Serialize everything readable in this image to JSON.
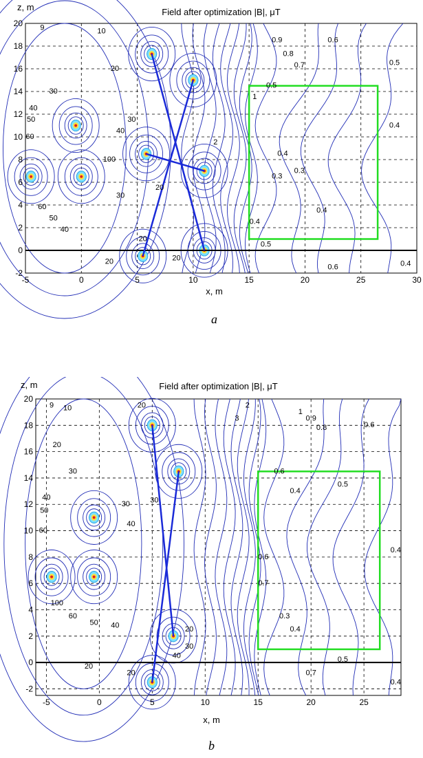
{
  "chart_data": [
    {
      "type": "contour",
      "panel": "a",
      "title": "Field after optimization |B|, μT",
      "xlabel": "x, m",
      "ylabel": "z, m",
      "caption": "a",
      "xlim": [
        -5,
        30
      ],
      "ylim": [
        -2,
        20
      ],
      "xticks": [
        -5,
        0,
        5,
        10,
        15,
        20,
        25,
        30
      ],
      "yticks": [
        -2,
        0,
        2,
        4,
        6,
        8,
        10,
        12,
        14,
        16,
        18,
        20
      ],
      "grid": true,
      "ground_line_z": 0,
      "region_rect": {
        "x0": 15,
        "x1": 26.5,
        "z0": 1,
        "z1": 14.5,
        "color": "#22dd22"
      },
      "conductors": [
        {
          "x": -4.5,
          "z": 6.5
        },
        {
          "x": 0,
          "z": 6.5
        },
        {
          "x": -0.5,
          "z": 11
        },
        {
          "x": 5.5,
          "z": -0.5
        },
        {
          "x": 11,
          "z": 0
        },
        {
          "x": 5.8,
          "z": 8.5
        },
        {
          "x": 11,
          "z": 7
        },
        {
          "x": 6.3,
          "z": 17.3
        },
        {
          "x": 10,
          "z": 15
        }
      ],
      "links": [
        {
          "from": [
            5.5,
            -0.5
          ],
          "to": [
            10,
            15
          ]
        },
        {
          "from": [
            6.3,
            17.3
          ],
          "to": [
            11,
            0
          ]
        },
        {
          "from": [
            5.8,
            8.5
          ],
          "to": [
            11,
            7
          ]
        }
      ],
      "labels": [
        {
          "t": "10",
          "x": 1.8,
          "z": 19.3
        },
        {
          "t": "9",
          "x": -3.5,
          "z": 19.6
        },
        {
          "t": "20",
          "x": 3,
          "z": 16
        },
        {
          "t": "30",
          "x": -2.5,
          "z": 14
        },
        {
          "t": "40",
          "x": -4.3,
          "z": 12.5
        },
        {
          "t": "50",
          "x": -4.5,
          "z": 11.5
        },
        {
          "t": "60",
          "x": -4.6,
          "z": 10
        },
        {
          "t": "100",
          "x": 2.5,
          "z": 8
        },
        {
          "t": "40",
          "x": 3.5,
          "z": 10.5
        },
        {
          "t": "30",
          "x": 3.5,
          "z": 4.8
        },
        {
          "t": "50",
          "x": -2.5,
          "z": 2.8
        },
        {
          "t": "60",
          "x": -3.5,
          "z": 3.8
        },
        {
          "t": "40",
          "x": -1.5,
          "z": 1.8
        },
        {
          "t": "30",
          "x": 4.5,
          "z": 11.5
        },
        {
          "t": "20",
          "x": 7,
          "z": 5.5
        },
        {
          "t": "20",
          "x": 5.5,
          "z": 1
        },
        {
          "t": "20",
          "x": 2.5,
          "z": -1
        },
        {
          "t": "20",
          "x": 8.5,
          "z": -0.7
        },
        {
          "t": "2",
          "x": 12,
          "z": 9.5
        },
        {
          "t": "1",
          "x": 15.5,
          "z": 13.5
        },
        {
          "t": "0.9",
          "x": 17.5,
          "z": 18.5
        },
        {
          "t": "0.8",
          "x": 18.5,
          "z": 17.3
        },
        {
          "t": "0.7",
          "x": 19.5,
          "z": 16.3
        },
        {
          "t": "0.6",
          "x": 22.5,
          "z": 18.5
        },
        {
          "t": "0.5",
          "x": 28,
          "z": 16.5
        },
        {
          "t": "0.5",
          "x": 17,
          "z": 14.5
        },
        {
          "t": "0.4",
          "x": 18,
          "z": 8.5
        },
        {
          "t": "0.4",
          "x": 28,
          "z": 11
        },
        {
          "t": "0.3",
          "x": 17.5,
          "z": 6.5
        },
        {
          "t": "0.3",
          "x": 19.5,
          "z": 7
        },
        {
          "t": "0.4",
          "x": 21.5,
          "z": 3.5
        },
        {
          "t": "0.5",
          "x": 16.5,
          "z": 0.5
        },
        {
          "t": "0.6",
          "x": 22.5,
          "z": -1.5
        },
        {
          "t": "0.4",
          "x": 29,
          "z": -1.2
        },
        {
          "t": "0.4",
          "x": 15.5,
          "z": 2.5
        }
      ]
    },
    {
      "type": "contour",
      "panel": "b",
      "title": "Field after optimization |B|, μT",
      "xlabel": "x, m",
      "ylabel": "z, m",
      "caption": "b",
      "xlim": [
        -6,
        28.5
      ],
      "ylim": [
        -2.5,
        20
      ],
      "xticks": [
        -5,
        0,
        5,
        10,
        15,
        20,
        25
      ],
      "yticks": [
        -2,
        0,
        2,
        4,
        6,
        8,
        10,
        12,
        14,
        16,
        18,
        20
      ],
      "grid": true,
      "ground_line_z": 0,
      "region_rect": {
        "x0": 15,
        "x1": 26.5,
        "z0": 1,
        "z1": 14.5,
        "color": "#22dd22"
      },
      "conductors": [
        {
          "x": -4.5,
          "z": 6.5
        },
        {
          "x": -0.5,
          "z": 6.5
        },
        {
          "x": -0.5,
          "z": 11
        },
        {
          "x": 5,
          "z": -1.5
        },
        {
          "x": 7,
          "z": 2
        },
        {
          "x": 5,
          "z": 18
        },
        {
          "x": 7.5,
          "z": 14.5
        }
      ],
      "links": [
        {
          "from": [
            5,
            -1.5
          ],
          "to": [
            7.5,
            14.5
          ]
        },
        {
          "from": [
            5,
            18
          ],
          "to": [
            7,
            2
          ]
        }
      ],
      "labels": [
        {
          "t": "9",
          "x": -4.5,
          "z": 19.5
        },
        {
          "t": "10",
          "x": -3,
          "z": 19.3
        },
        {
          "t": "20",
          "x": 4,
          "z": 19.5
        },
        {
          "t": "20",
          "x": -4,
          "z": 16.5
        },
        {
          "t": "30",
          "x": -2.5,
          "z": 14.5
        },
        {
          "t": "40",
          "x": -5,
          "z": 12.5
        },
        {
          "t": "50",
          "x": -5.2,
          "z": 11.5
        },
        {
          "t": "60",
          "x": -5.3,
          "z": 10
        },
        {
          "t": "30",
          "x": 2.5,
          "z": 12
        },
        {
          "t": "40",
          "x": 3,
          "z": 10.5
        },
        {
          "t": "100",
          "x": -4,
          "z": 4.5
        },
        {
          "t": "60",
          "x": -2.5,
          "z": 3.5
        },
        {
          "t": "50",
          "x": -0.5,
          "z": 3
        },
        {
          "t": "40",
          "x": 1.5,
          "z": 2.8
        },
        {
          "t": "30",
          "x": 5.2,
          "z": 12.3
        },
        {
          "t": "20",
          "x": 8.5,
          "z": 2.5
        },
        {
          "t": "30",
          "x": 8.5,
          "z": 1.2
        },
        {
          "t": "40",
          "x": 7.3,
          "z": 0.5
        },
        {
          "t": "20",
          "x": 3,
          "z": -0.8
        },
        {
          "t": "20",
          "x": -1,
          "z": -0.3
        },
        {
          "t": "3",
          "x": 13,
          "z": 18.5
        },
        {
          "t": "2",
          "x": 14,
          "z": 19.5
        },
        {
          "t": "1",
          "x": 19,
          "z": 19
        },
        {
          "t": "0.9",
          "x": 20,
          "z": 18.5
        },
        {
          "t": "0.8",
          "x": 21,
          "z": 17.8
        },
        {
          "t": "0.6",
          "x": 25.5,
          "z": 18
        },
        {
          "t": "0.6",
          "x": 17,
          "z": 14.5
        },
        {
          "t": "0.4",
          "x": 18.5,
          "z": 13
        },
        {
          "t": "0.5",
          "x": 23,
          "z": 13.5
        },
        {
          "t": "0.4",
          "x": 28,
          "z": 8.5
        },
        {
          "t": "0.3",
          "x": 17.5,
          "z": 3.5
        },
        {
          "t": "0.4",
          "x": 18.5,
          "z": 2.5
        },
        {
          "t": "0.5",
          "x": 23,
          "z": 0.2
        },
        {
          "t": "0.7",
          "x": 20,
          "z": -0.8
        },
        {
          "t": "0.4",
          "x": 28,
          "z": -1.5
        },
        {
          "t": "0.6",
          "x": 15.5,
          "z": 8
        },
        {
          "t": "0.7",
          "x": 15.5,
          "z": 6
        }
      ]
    }
  ]
}
